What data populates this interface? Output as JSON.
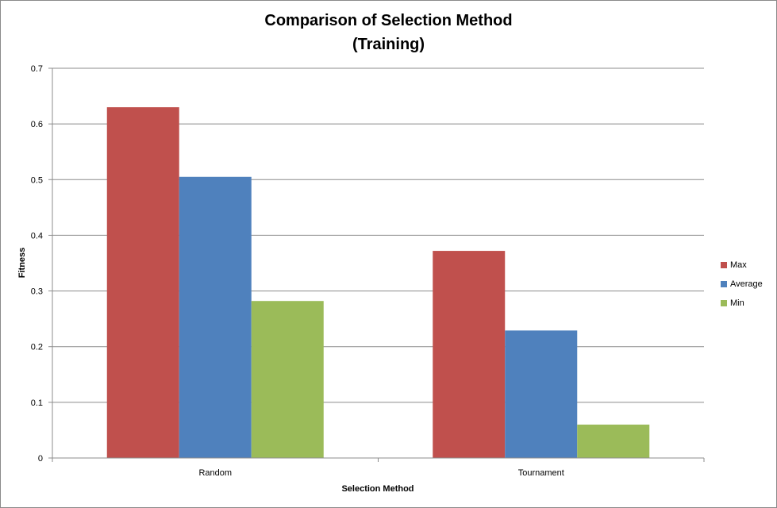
{
  "chart_data": {
    "type": "bar",
    "title_line1": "Comparison of Selection Method",
    "title_line2": "(Training)",
    "xlabel": "Selection Method",
    "ylabel": "Fitness",
    "categories": [
      "Random",
      "Tournament"
    ],
    "series": [
      {
        "name": "Max",
        "color": "#c0504d",
        "values": [
          0.63,
          0.372
        ]
      },
      {
        "name": "Average",
        "color": "#4f81bd",
        "values": [
          0.505,
          0.229
        ]
      },
      {
        "name": "Min",
        "color": "#9bbb59",
        "values": [
          0.282,
          0.06
        ]
      }
    ],
    "ylim": [
      0,
      0.7
    ],
    "yticks": [
      "0",
      "0.1",
      "0.2",
      "0.3",
      "0.4",
      "0.5",
      "0.6",
      "0.7"
    ],
    "grid": true,
    "legend_position": "right"
  }
}
